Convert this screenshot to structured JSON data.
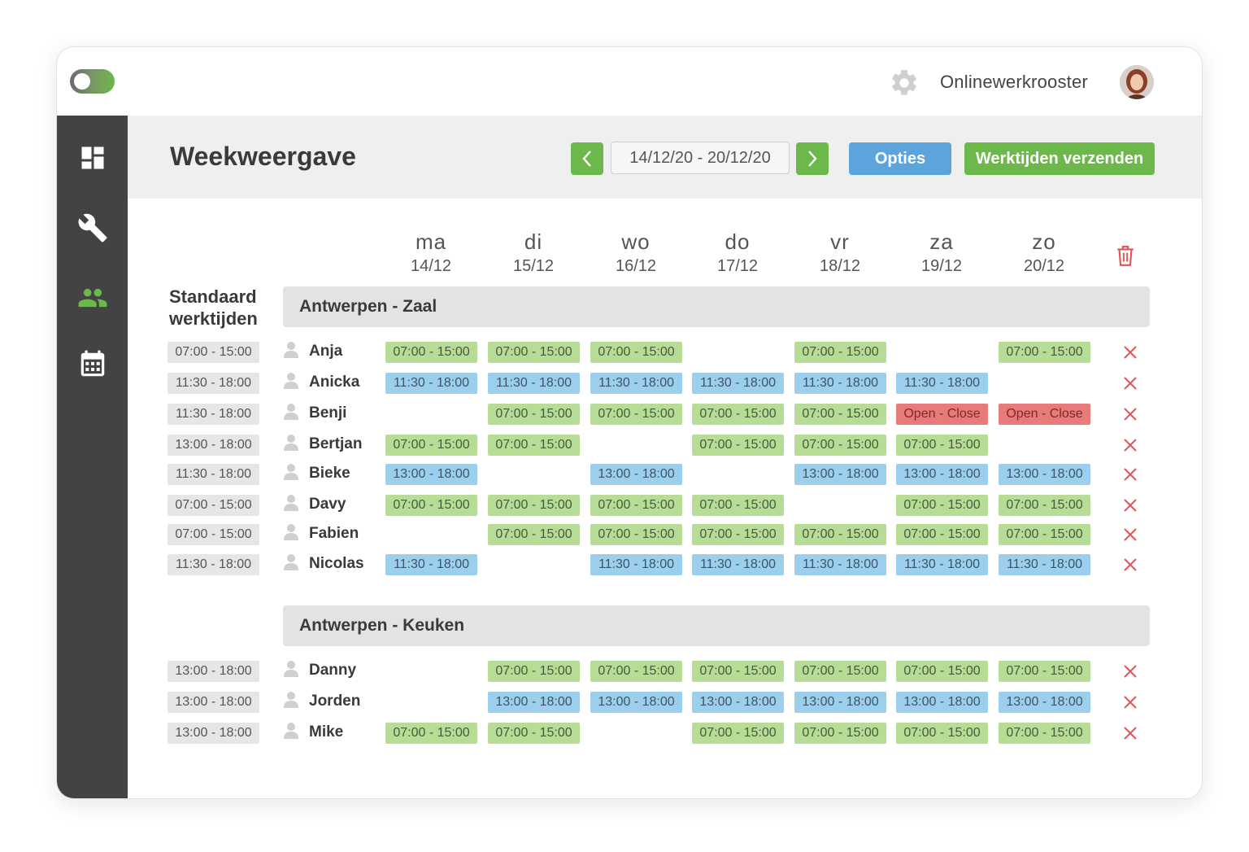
{
  "topbar": {
    "brand": "Onlinewerkrooster"
  },
  "header": {
    "title": "Weekweergave",
    "date_range": "14/12/20 - 20/12/20",
    "options_label": "Opties",
    "send_label": "Werktijden verzenden"
  },
  "colors": {
    "green": "#6cb84a",
    "blue": "#5ba4dc",
    "red": "#e05555",
    "sidebar": "#434343"
  },
  "days": [
    {
      "name": "ma",
      "date": "14/12"
    },
    {
      "name": "di",
      "date": "15/12"
    },
    {
      "name": "wo",
      "date": "16/12"
    },
    {
      "name": "do",
      "date": "17/12"
    },
    {
      "name": "vr",
      "date": "18/12"
    },
    {
      "name": "za",
      "date": "19/12"
    },
    {
      "name": "zo",
      "date": "20/12"
    }
  ],
  "standard_label_1": "Standaard",
  "standard_label_2": "werktijden",
  "groups": [
    {
      "name": "Antwerpen - Zaal",
      "employees": [
        {
          "name": "Anja",
          "standard": "07:00 - 15:00",
          "shifts": [
            "07:00 - 15:00",
            "07:00 - 15:00",
            "07:00 - 15:00",
            "",
            "07:00 - 15:00",
            "",
            "07:00 - 15:00"
          ]
        },
        {
          "name": "Anicka",
          "standard": "11:30 - 18:00",
          "shifts": [
            "11:30 - 18:00",
            "11:30 - 18:00",
            "11:30 - 18:00",
            "11:30 - 18:00",
            "11:30 - 18:00",
            "11:30 - 18:00",
            ""
          ]
        },
        {
          "name": "Benji",
          "standard": "11:30 - 18:00",
          "shifts": [
            "",
            "07:00 - 15:00",
            "07:00 - 15:00",
            "07:00 - 15:00",
            "07:00 - 15:00",
            "Open - Close",
            "Open - Close"
          ]
        },
        {
          "name": "Bertjan",
          "standard": "13:00 - 18:00",
          "shifts": [
            "07:00 - 15:00",
            "07:00 - 15:00",
            "",
            "07:00 - 15:00",
            "07:00 - 15:00",
            "07:00 - 15:00",
            ""
          ]
        },
        {
          "name": "Bieke",
          "standard": "11:30 - 18:00",
          "shifts": [
            "13:00 - 18:00",
            "",
            "13:00 - 18:00",
            "",
            "13:00 - 18:00",
            "13:00 - 18:00",
            "13:00 - 18:00"
          ]
        },
        {
          "name": "Davy",
          "standard": "07:00 - 15:00",
          "shifts": [
            "07:00 - 15:00",
            "07:00 - 15:00",
            "07:00 - 15:00",
            "07:00 - 15:00",
            "",
            "07:00 - 15:00",
            "07:00 - 15:00"
          ]
        },
        {
          "name": "Fabien",
          "standard": "07:00 - 15:00",
          "shifts": [
            "",
            "07:00 - 15:00",
            "07:00 - 15:00",
            "07:00 - 15:00",
            "07:00 - 15:00",
            "07:00 - 15:00",
            "07:00 - 15:00"
          ]
        },
        {
          "name": "Nicolas",
          "standard": "11:30 - 18:00",
          "shifts": [
            "11:30 - 18:00",
            "",
            "11:30 - 18:00",
            "11:30 - 18:00",
            "11:30 - 18:00",
            "11:30 - 18:00",
            "11:30 - 18:00"
          ]
        }
      ]
    },
    {
      "name": "Antwerpen - Keuken",
      "employees": [
        {
          "name": "Danny",
          "standard": "13:00 - 18:00",
          "shifts": [
            "",
            "07:00 - 15:00",
            "07:00 - 15:00",
            "07:00 - 15:00",
            "07:00 - 15:00",
            "07:00 - 15:00",
            "07:00 - 15:00"
          ]
        },
        {
          "name": "Jorden",
          "standard": "13:00 - 18:00",
          "shifts": [
            "",
            "13:00 - 18:00",
            "13:00 - 18:00",
            "13:00 - 18:00",
            "13:00 - 18:00",
            "13:00 - 18:00",
            "13:00 - 18:00"
          ]
        },
        {
          "name": "Mike",
          "standard": "13:00 - 18:00",
          "shifts": [
            "07:00 - 15:00",
            "07:00 - 15:00",
            "",
            "07:00 - 15:00",
            "07:00 - 15:00",
            "07:00 - 15:00",
            "07:00 - 15:00"
          ]
        }
      ]
    }
  ]
}
